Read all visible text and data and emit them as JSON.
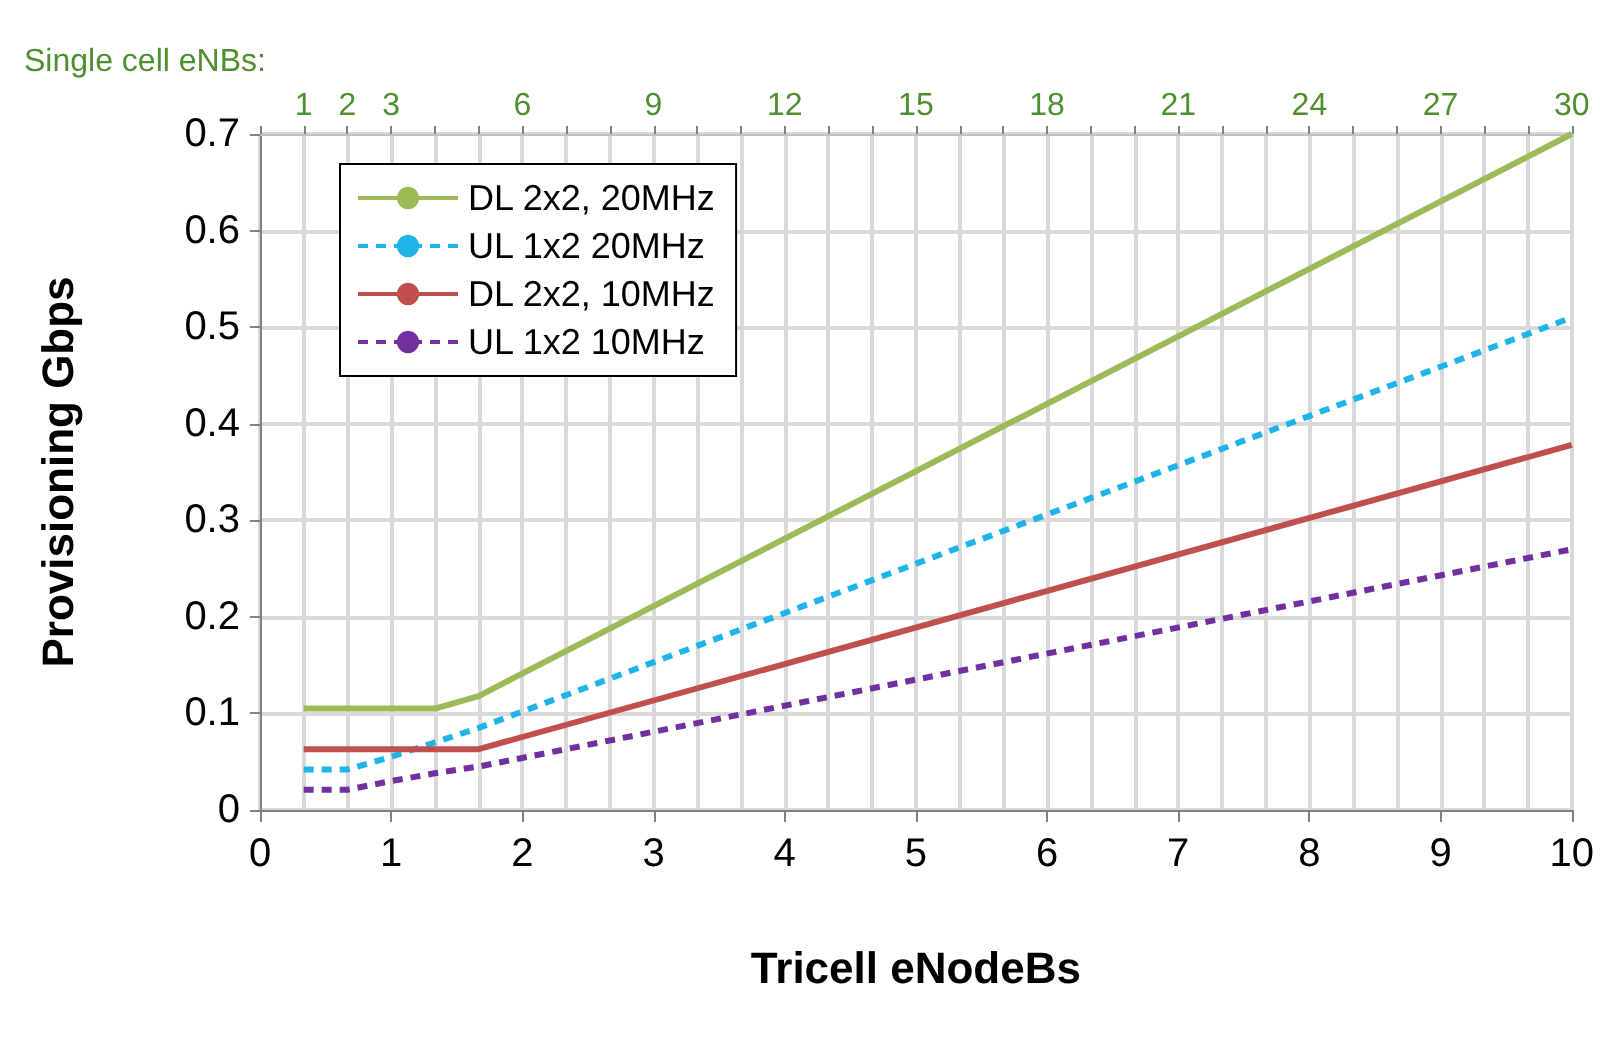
{
  "chart_data": {
    "type": "line",
    "xlabel": "Tricell eNodeBs",
    "ylabel": "Provisioning Gbps",
    "x2label": "Single cell eNBs:",
    "xlim": [
      0,
      10
    ],
    "xticks": [
      0,
      1,
      2,
      3,
      4,
      5,
      6,
      7,
      8,
      9,
      10
    ],
    "x2lim": [
      0,
      30
    ],
    "x2ticks": [
      1,
      2,
      3,
      6,
      9,
      12,
      15,
      18,
      21,
      24,
      27,
      30
    ],
    "ylim": [
      0,
      0.7
    ],
    "yticks": [
      0,
      0.1,
      0.2,
      0.3,
      0.4,
      0.5,
      0.6,
      0.7
    ],
    "grid": true,
    "legend": "top left",
    "marker": "none",
    "series": [
      {
        "name": "DL 2x2, 20MHz",
        "color": "#9bbb59",
        "line_style": "solid",
        "x": [
          0.333,
          1.333,
          1.667,
          10
        ],
        "values": [
          0.105,
          0.105,
          0.118,
          0.7
        ]
      },
      {
        "name": "UL 1x2 20MHz",
        "color": "#1fb4e8",
        "line_style": "dashed",
        "x": [
          0.333,
          0.667,
          1,
          1.333,
          1.667,
          10
        ],
        "values": [
          0.042,
          0.042,
          0.055,
          0.07,
          0.085,
          0.51
        ]
      },
      {
        "name": "DL 2x2, 10MHz",
        "color": "#c0504d",
        "line_style": "solid",
        "x": [
          0.333,
          1.667,
          10
        ],
        "values": [
          0.063,
          0.063,
          0.378
        ]
      },
      {
        "name": "UL 1x2 10MHz",
        "color": "#7030a0",
        "line_style": "dashed",
        "x": [
          0.333,
          0.667,
          1,
          1.333,
          1.667,
          10
        ],
        "values": [
          0.021,
          0.021,
          0.03,
          0.038,
          0.045,
          0.27
        ]
      }
    ]
  }
}
